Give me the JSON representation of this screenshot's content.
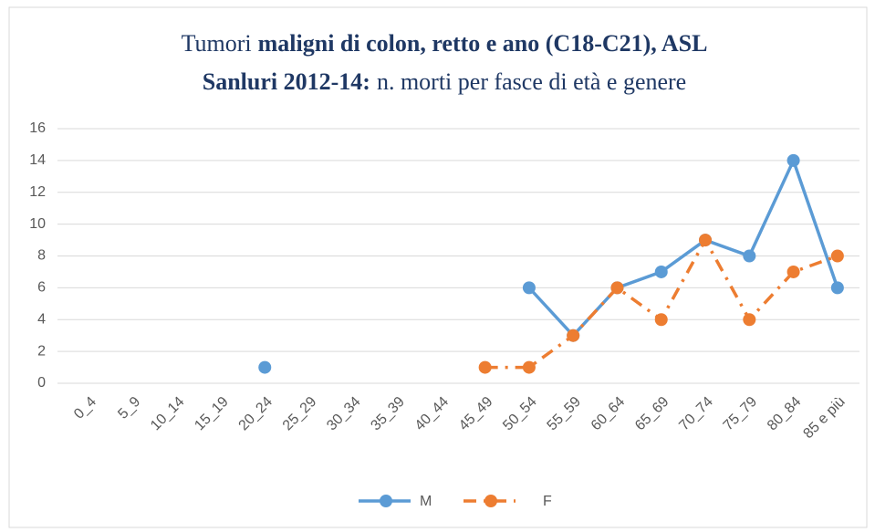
{
  "chart_data": {
    "type": "line",
    "title": [
      "Tumori",
      "maligni di colon, retto e ano (C18-C21), ASL",
      "Sanluri 2012-14:",
      "n. morti per fasce di età e genere"
    ],
    "categories": [
      "0_4",
      "5_9",
      "10_14",
      "15_19",
      "20_24",
      "25_29",
      "30_34",
      "35_39",
      "40_44",
      "45_49",
      "50_54",
      "55_59",
      "60_64",
      "65_69",
      "70_74",
      "75_79",
      "80_84",
      "85 e più"
    ],
    "series": [
      {
        "name": "M",
        "color": "#5b9bd5",
        "values": [
          null,
          null,
          null,
          null,
          1,
          null,
          null,
          null,
          null,
          null,
          6,
          3,
          6,
          7,
          9,
          8,
          14,
          6
        ]
      },
      {
        "name": "F",
        "color": "#ed7d31",
        "values": [
          null,
          null,
          null,
          null,
          null,
          null,
          null,
          null,
          null,
          1,
          1,
          3,
          6,
          4,
          9,
          4,
          7,
          8
        ]
      }
    ],
    "ylim": [
      0,
      16
    ],
    "yticks": [
      0,
      2,
      4,
      6,
      8,
      10,
      12,
      14,
      16
    ],
    "grid": true,
    "legend": "bottom"
  }
}
